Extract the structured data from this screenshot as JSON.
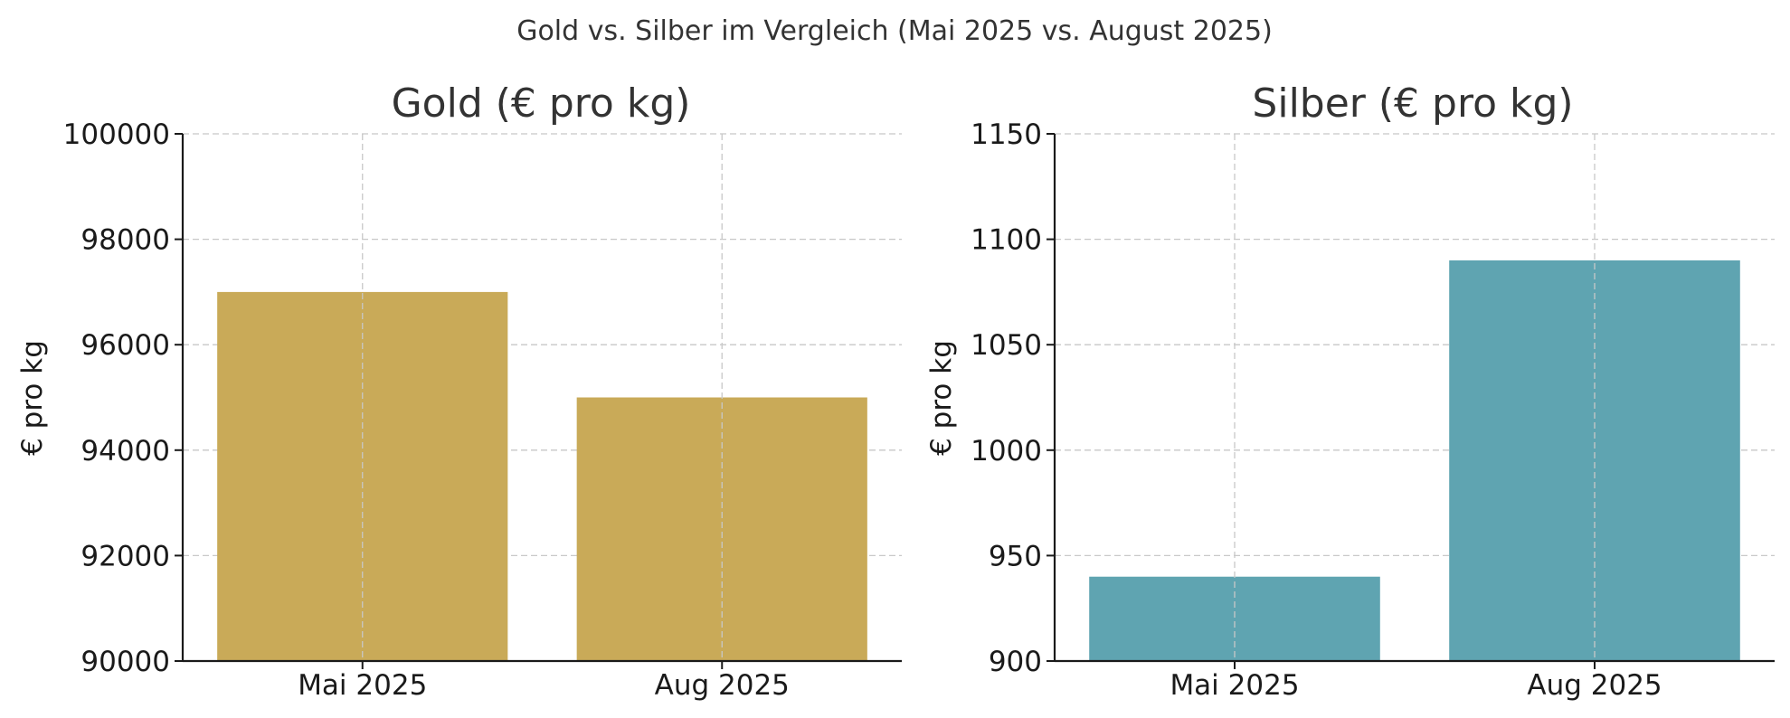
{
  "figure": {
    "title": "Gold vs. Silber im Vergleich (Mai 2025 vs. August 2025)"
  },
  "chart_data": [
    {
      "type": "bar",
      "title": "Gold (€ pro kg)",
      "xlabel": "",
      "ylabel": "€ pro kg",
      "categories": [
        "Mai 2025",
        "Aug 2025"
      ],
      "values": [
        97000,
        95000
      ],
      "ylim": [
        90000,
        100000
      ],
      "yticks": [
        90000,
        92000,
        94000,
        96000,
        98000,
        100000
      ],
      "grid": true,
      "color": "#c9aa58"
    },
    {
      "type": "bar",
      "title": "Silber (€ pro kg)",
      "xlabel": "",
      "ylabel": "€ pro kg",
      "categories": [
        "Mai 2025",
        "Aug 2025"
      ],
      "values": [
        940,
        1090
      ],
      "ylim": [
        900,
        1150
      ],
      "yticks": [
        900,
        950,
        1000,
        1050,
        1100,
        1150
      ],
      "grid": true,
      "color": "#5fa4b1"
    }
  ]
}
